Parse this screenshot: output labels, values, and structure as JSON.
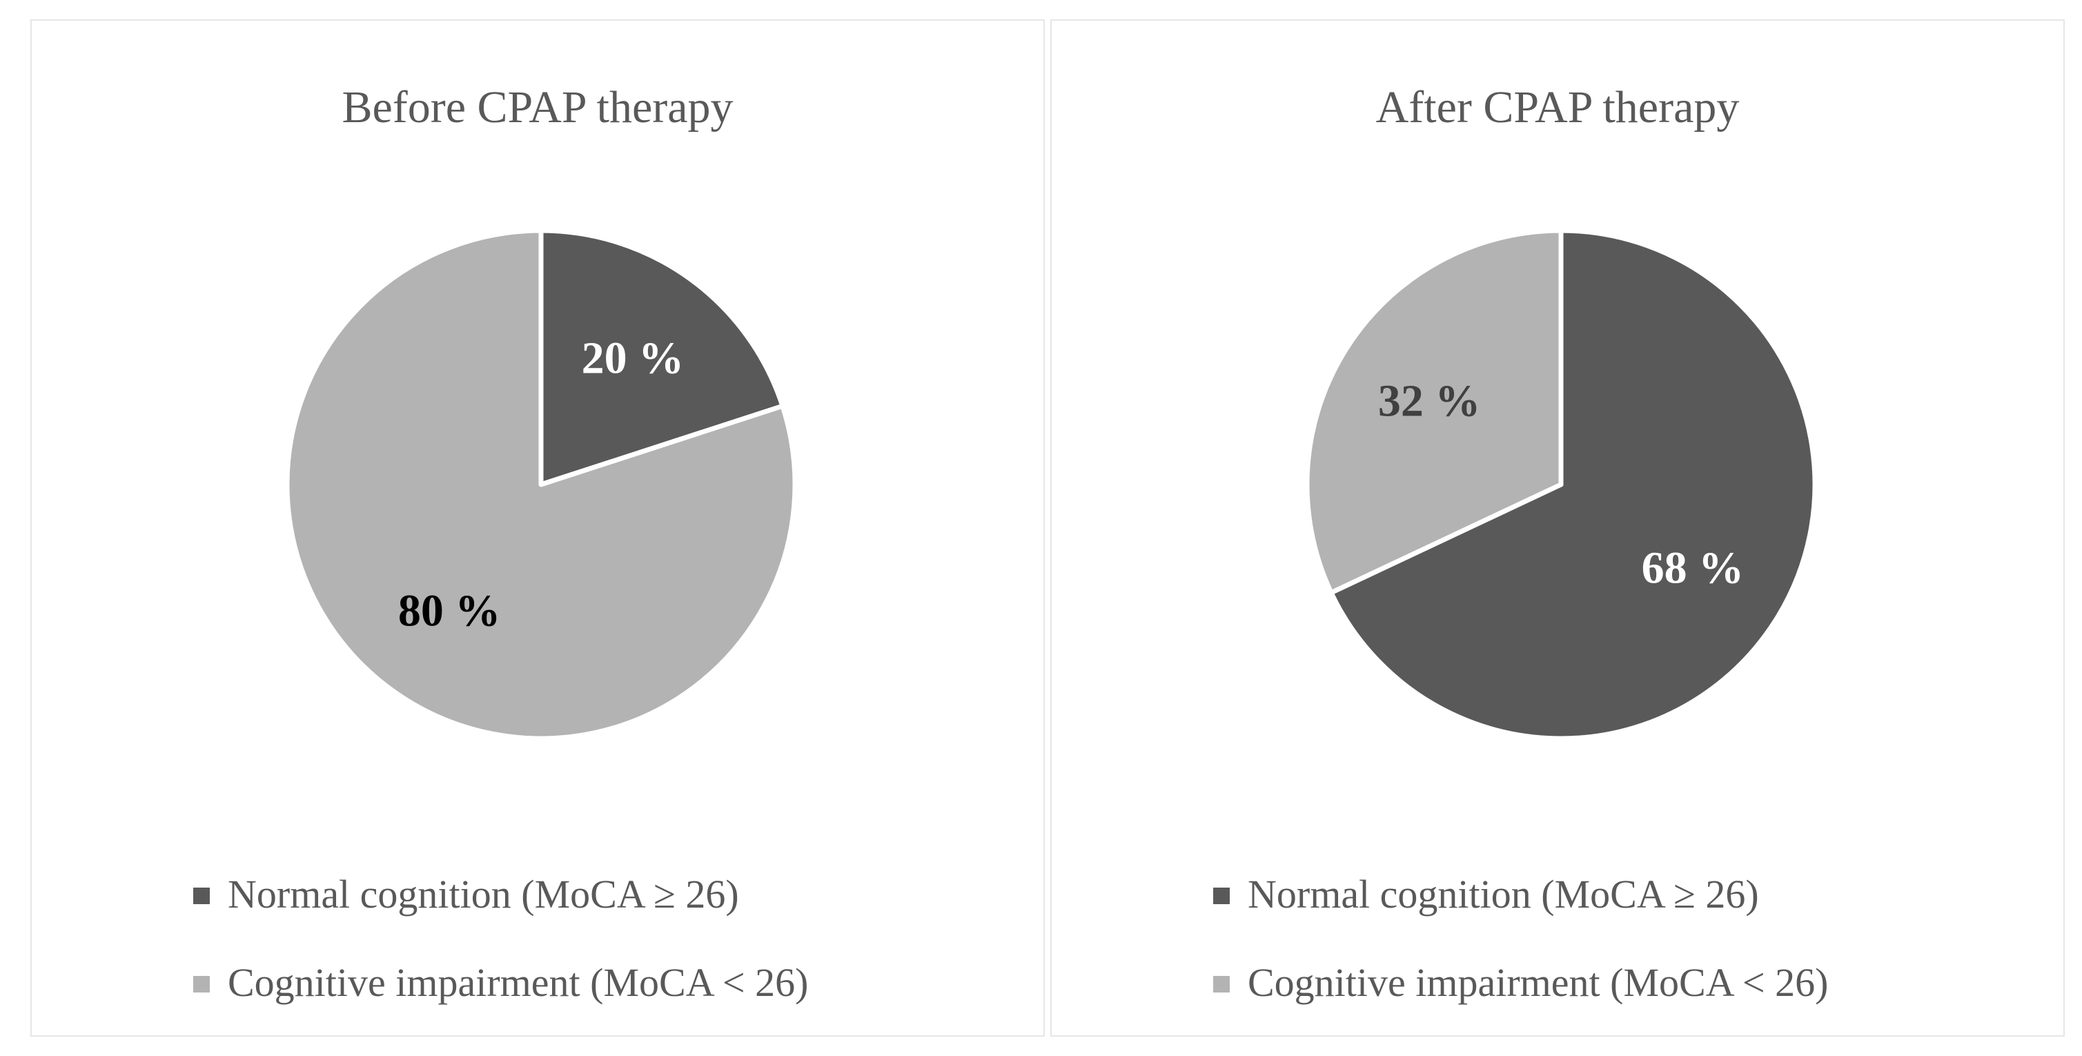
{
  "chart_data": [
    {
      "type": "pie",
      "title": "Before CPAP therapy",
      "slices": [
        {
          "label": "Normal cognition (MoCA ≥ 26)",
          "value": 20,
          "data_label": "20 %",
          "color": "#595959",
          "label_color": "#ffffff"
        },
        {
          "label": "Cognitive impairment (MoCA < 26)",
          "value": 80,
          "data_label": "80 %",
          "color": "#b3b3b3",
          "label_color": "#000000"
        }
      ],
      "legend": [
        "Normal cognition (MoCA ≥ 26)",
        "Cognitive impairment (MoCA < 26)"
      ],
      "legend_position": "bottom"
    },
    {
      "type": "pie",
      "title": "After CPAP therapy",
      "slices": [
        {
          "label": "Normal cognition (MoCA ≥ 26)",
          "value": 68,
          "data_label": "68 %",
          "color": "#595959",
          "label_color": "#ffffff"
        },
        {
          "label": "Cognitive impairment (MoCA < 26)",
          "value": 32,
          "data_label": "32 %",
          "color": "#b3b3b3",
          "label_color": "#404040"
        }
      ],
      "legend": [
        "Normal cognition (MoCA ≥ 26)",
        "Cognitive impairment (MoCA < 26)"
      ],
      "legend_position": "bottom"
    }
  ]
}
